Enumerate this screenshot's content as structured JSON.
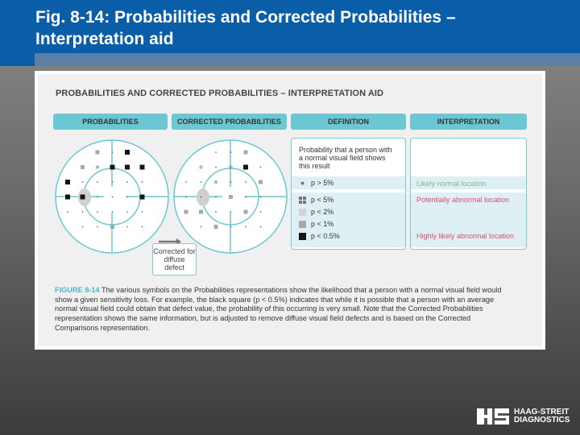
{
  "slide": {
    "title": "Fig. 8-14: Probabilities and Corrected Probabilities – Interpretation aid"
  },
  "figure": {
    "title": "PROBABILITIES AND CORRECTED PROBABILITIES – INTERPRETATION AID",
    "columns": [
      "PROBABILITIES",
      "CORRECTED PROBABILITIES",
      "DEFINITION",
      "INTERPRETATION"
    ],
    "definition": "Probability that a person with a normal visual field shows this result",
    "legend": [
      {
        "label": "p > 5%",
        "symbol": "small-dot"
      },
      {
        "label": "p < 5%",
        "symbol": "four-dots"
      },
      {
        "label": "p < 2%",
        "symbol": "light-gray-square",
        "color": "#d4d4d4"
      },
      {
        "label": "p < 1%",
        "symbol": "gray-square",
        "color": "#a8a8a8"
      },
      {
        "label": "p < 0.5%",
        "symbol": "black-square",
        "color": "#151515"
      }
    ],
    "interpretation": [
      {
        "label": "Likely normal location",
        "color": "#7fb79a"
      },
      {
        "label": "Potentially abnormal location",
        "color": "#d9506a"
      },
      {
        "label": "Highly likely abnormal location",
        "color": "#d9506a"
      }
    ],
    "arrow_label": "Corrected for diffuse defect",
    "caption_label": "FIGURE 8-14",
    "caption": "The various symbols on the Probabilities representations show the likelihood that a person with a normal visual field would show a given sensitivity loss. For example, the black square (p < 0.5%) indicates that while it is possible that a person with an average normal visual field could obtain that defect value, the probability of this occurring is very small. Note that the Corrected Probabilities representation shows the same information, but is adjusted to remove diffuse visual field defects and is based on the Corrected Comparisons representation."
  },
  "logo": {
    "line1": "HAAG-STREIT",
    "line2": "DIAGNOSTICS"
  },
  "colors": {
    "header": "#0a5ea8",
    "accent": "#6cc7d4"
  }
}
